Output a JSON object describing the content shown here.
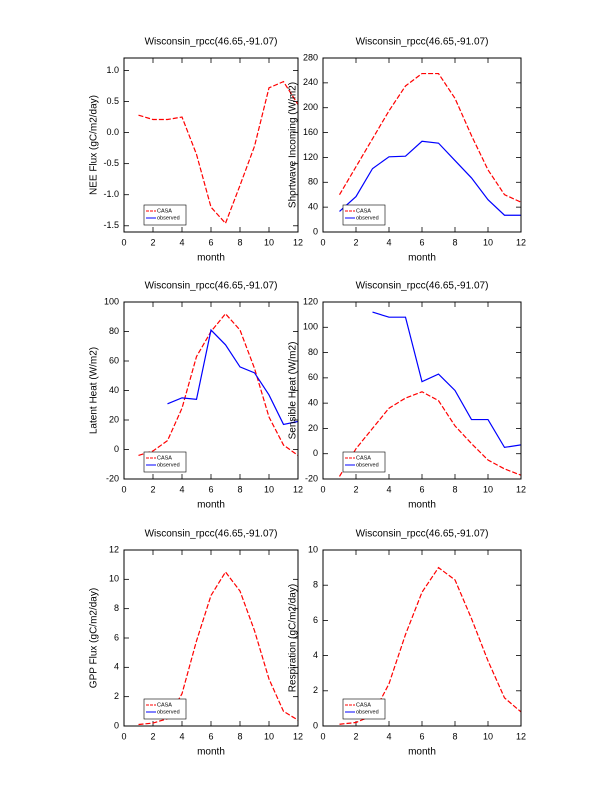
{
  "chart_data": [
    {
      "type": "line",
      "title": "Wisconsin_rpcc(46.65,-91.07)",
      "x_label": "month",
      "y_label": "NEE Flux (gC/m2/day)",
      "x": [
        1,
        2,
        3,
        4,
        5,
        6,
        7,
        8,
        9,
        10,
        11,
        12
      ],
      "xlim": [
        0,
        12
      ],
      "xticks": [
        0,
        2,
        4,
        6,
        8,
        10,
        12
      ],
      "ylim": [
        -1.6,
        1.2
      ],
      "yticks": [
        -1.5,
        {
          "value": -1,
          "label": "-1.0"
        },
        -0.5,
        {
          "value": 0,
          "label": "0.0"
        },
        0.5,
        {
          "value": 1,
          "label": "1.0"
        }
      ],
      "legend": "lower left",
      "series": [
        {
          "name": "CASA",
          "color": "#ff0000",
          "line_style": "dashed",
          "values": [
            0.28,
            0.21,
            0.21,
            0.25,
            -0.35,
            -1.2,
            -1.46,
            -0.85,
            -0.22,
            0.72,
            0.82,
            0.45
          ]
        },
        {
          "name": "observed",
          "color": "#0000ff",
          "line_style": "solid",
          "values": [
            null,
            null,
            null,
            null,
            null,
            null,
            null,
            null,
            null,
            null,
            null,
            null
          ]
        }
      ]
    },
    {
      "type": "line",
      "title": "Wisconsin_rpcc(46.65,-91.07)",
      "x_label": "month",
      "y_label": "Shortwave Incoming (W/m2)",
      "x": [
        1,
        2,
        3,
        4,
        5,
        6,
        7,
        8,
        9,
        10,
        11,
        12
      ],
      "xlim": [
        0,
        12
      ],
      "xticks": [
        0,
        2,
        4,
        6,
        8,
        10,
        12
      ],
      "ylim": [
        0,
        280
      ],
      "yticks": [
        0,
        40,
        80,
        120,
        160,
        200,
        240,
        280
      ],
      "legend": "lower left",
      "series": [
        {
          "name": "CASA",
          "color": "#ff0000",
          "line_style": "dashed",
          "values": [
            60,
            105,
            150,
            195,
            235,
            255,
            255,
            215,
            155,
            100,
            60,
            48
          ]
        },
        {
          "name": "observed",
          "color": "#0000ff",
          "line_style": "solid",
          "values": [
            33,
            57,
            102,
            121,
            122,
            146,
            143,
            115,
            87,
            52,
            27,
            27
          ]
        }
      ]
    },
    {
      "type": "line",
      "title": "Wisconsin_rpcc(46.65,-91.07)",
      "x_label": "month",
      "y_label": "Latent Heat (W/m2)",
      "x": [
        1,
        2,
        3,
        4,
        5,
        6,
        7,
        8,
        9,
        10,
        11,
        12
      ],
      "xlim": [
        0,
        12
      ],
      "xticks": [
        0,
        2,
        4,
        6,
        8,
        10,
        12
      ],
      "ylim": [
        -20,
        100
      ],
      "yticks": [
        -20,
        0,
        20,
        40,
        60,
        80,
        100
      ],
      "legend": "lower left",
      "series": [
        {
          "name": "CASA",
          "color": "#ff0000",
          "line_style": "dashed",
          "values": [
            -4,
            -1,
            6,
            28,
            63,
            80,
            92,
            81,
            55,
            22,
            3,
            -4
          ]
        },
        {
          "name": "observed",
          "color": "#0000ff",
          "line_style": "solid",
          "values": [
            null,
            null,
            31,
            35,
            34,
            81,
            71,
            56,
            52,
            37,
            17,
            19
          ]
        }
      ]
    },
    {
      "type": "line",
      "title": "Wisconsin_rpcc(46.65,-91.07)",
      "x_label": "month",
      "y_label": "Sensible Heat (W/m2)",
      "x": [
        1,
        2,
        3,
        4,
        5,
        6,
        7,
        8,
        9,
        10,
        11,
        12
      ],
      "xlim": [
        0,
        12
      ],
      "xticks": [
        0,
        2,
        4,
        6,
        8,
        10,
        12
      ],
      "ylim": [
        -20,
        120
      ],
      "yticks": [
        -20,
        0,
        20,
        40,
        60,
        80,
        100,
        120
      ],
      "legend": "lower left",
      "series": [
        {
          "name": "CASA",
          "color": "#ff0000",
          "line_style": "dashed",
          "values": [
            -18,
            4,
            20,
            36,
            44,
            49,
            42,
            22,
            8,
            -5,
            -12,
            -17
          ]
        },
        {
          "name": "observed",
          "color": "#0000ff",
          "line_style": "solid",
          "values": [
            null,
            null,
            112,
            108,
            108,
            57,
            63,
            50,
            27,
            27,
            5,
            7
          ]
        }
      ]
    },
    {
      "type": "line",
      "title": "Wisconsin_rpcc(46.65,-91.07)",
      "x_label": "month",
      "y_label": "GPP Flux (gC/m2/day)",
      "x": [
        1,
        2,
        3,
        4,
        5,
        6,
        7,
        8,
        9,
        10,
        11,
        12
      ],
      "xlim": [
        0,
        12
      ],
      "xticks": [
        0,
        2,
        4,
        6,
        8,
        10,
        12
      ],
      "ylim": [
        0,
        12
      ],
      "yticks": [
        0,
        2,
        4,
        6,
        8,
        10,
        12
      ],
      "legend": "lower left",
      "series": [
        {
          "name": "CASA",
          "color": "#ff0000",
          "line_style": "dashed",
          "values": [
            0.1,
            0.2,
            0.5,
            2.2,
            5.8,
            8.9,
            10.5,
            9.2,
            6.5,
            3.2,
            1.0,
            0.4
          ]
        },
        {
          "name": "observed",
          "color": "#0000ff",
          "line_style": "solid",
          "values": [
            null,
            null,
            null,
            null,
            null,
            null,
            null,
            null,
            null,
            null,
            null,
            null
          ]
        }
      ]
    },
    {
      "type": "line",
      "title": "Wisconsin_rpcc(46.65,-91.07)",
      "x_label": "month",
      "y_label": "Respiration (gC/m2/day)",
      "x": [
        1,
        2,
        3,
        4,
        5,
        6,
        7,
        8,
        9,
        10,
        11,
        12
      ],
      "xlim": [
        0,
        12
      ],
      "xticks": [
        0,
        2,
        4,
        6,
        8,
        10,
        12
      ],
      "ylim": [
        0,
        10
      ],
      "yticks": [
        0,
        2,
        4,
        6,
        8,
        10
      ],
      "legend": "lower left",
      "series": [
        {
          "name": "CASA",
          "color": "#ff0000",
          "line_style": "dashed",
          "values": [
            0.1,
            0.2,
            0.6,
            2.4,
            5.2,
            7.6,
            9.0,
            8.3,
            6.1,
            3.7,
            1.6,
            0.8
          ]
        },
        {
          "name": "observed",
          "color": "#0000ff",
          "line_style": "solid",
          "values": [
            null,
            null,
            null,
            null,
            null,
            null,
            null,
            null,
            null,
            null,
            null,
            null
          ]
        }
      ]
    }
  ]
}
